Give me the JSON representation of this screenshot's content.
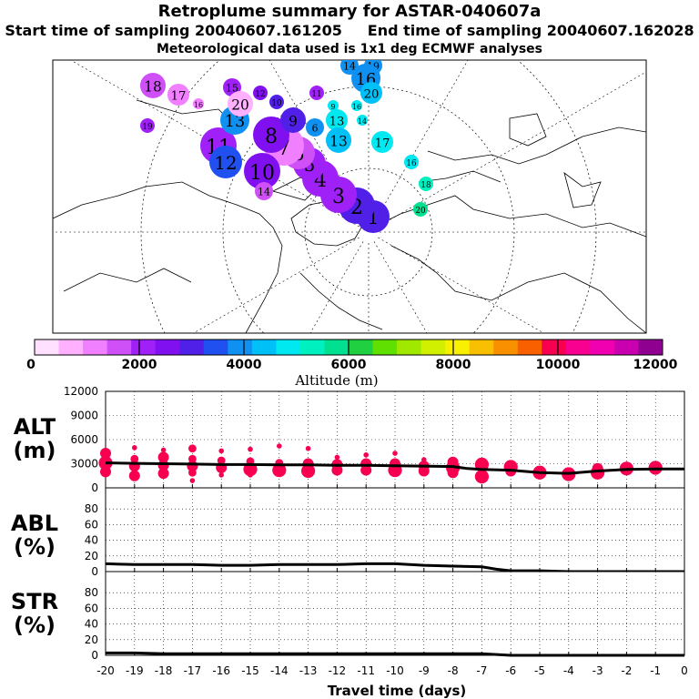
{
  "header": {
    "title": "Retroplume summary for ASTAR-040607a",
    "sampling_line": "Start time of sampling 20040607.161205     End time of sampling 20040607.162028",
    "met_line": "Meteorological data used is 1x1 deg ECMWF analyses"
  },
  "colorbar": {
    "label": "Altitude (m)",
    "ticks": [
      "0",
      "2000",
      "4000",
      "6000",
      "8000",
      "10000",
      "12000"
    ],
    "colors": [
      "#ffe0ff",
      "#ffb0ff",
      "#f080ff",
      "#d050f8",
      "#a020f8",
      "#8010f0",
      "#5020e8",
      "#2050f0",
      "#1090f0",
      "#00c0f8",
      "#00e8f0",
      "#00f0c0",
      "#00e090",
      "#20d040",
      "#60e000",
      "#a0e800",
      "#d0f000",
      "#f8f000",
      "#f8c000",
      "#f89000",
      "#f86000",
      "#f80050",
      "#f80090",
      "#f000b0",
      "#c800b0",
      "#900090"
    ]
  },
  "map": {
    "clusters": [
      {
        "label": "1",
        "lon_idx": 1,
        "color": "#5020e8"
      },
      {
        "label": "2",
        "lon_idx": 2,
        "color": "#5020e8"
      },
      {
        "label": "3",
        "lon_idx": 3,
        "color": "#a020f8"
      },
      {
        "label": "4",
        "lon_idx": 4,
        "color": "#a020f8"
      },
      {
        "label": "5",
        "lon_idx": 5,
        "color": "#a020f8"
      },
      {
        "label": "6",
        "lon_idx": 6,
        "color": "#d050f8"
      },
      {
        "label": "7",
        "lon_idx": 7,
        "color": "#f080ff"
      },
      {
        "label": "8",
        "lon_idx": 8,
        "color": "#8010f0"
      },
      {
        "label": "9",
        "lon_idx": 9,
        "color": "#5020e8"
      },
      {
        "label": "10",
        "lon_idx": 10,
        "color": "#8010f0"
      },
      {
        "label": "11",
        "lon_idx": 11,
        "color": "#a020f8"
      },
      {
        "label": "12",
        "lon_idx": 12,
        "color": "#2050f0"
      },
      {
        "label": "13",
        "lon_idx": 13,
        "color": "#1090f0"
      },
      {
        "label": "14",
        "lon_idx": 14,
        "color": "#d050f8"
      },
      {
        "label": "15",
        "lon_idx": 15,
        "color": "#a020f8"
      },
      {
        "label": "16",
        "lon_idx": 16,
        "color": "#f080ff"
      },
      {
        "label": "17",
        "lon_idx": 17,
        "color": "#f080ff"
      },
      {
        "label": "18",
        "lon_idx": 18,
        "color": "#d050f8"
      },
      {
        "label": "19",
        "lon_idx": 19,
        "color": "#a020f8"
      },
      {
        "label": "20",
        "lon_idx": 20,
        "color": "#ffb0ff"
      },
      {
        "label": "12",
        "lon_idx": 21,
        "color": "#8010f0"
      },
      {
        "label": "10",
        "lon_idx": 22,
        "color": "#5020e8"
      },
      {
        "label": "11",
        "lon_idx": 23,
        "color": "#a020f8"
      },
      {
        "label": "14",
        "lon_idx": 24,
        "color": "#1090f0"
      },
      {
        "label": "19",
        "lon_idx": 25,
        "color": "#1090f0"
      },
      {
        "label": "16",
        "lon_idx": 26,
        "color": "#1090f0"
      },
      {
        "label": "20",
        "lon_idx": 27,
        "color": "#00c0f8"
      },
      {
        "label": "13",
        "lon_idx": 28,
        "color": "#00e8f0"
      },
      {
        "label": "17",
        "lon_idx": 29,
        "color": "#00e8f0"
      },
      {
        "label": "16",
        "lon_idx": 30,
        "color": "#00e8f0"
      },
      {
        "label": "18",
        "lon_idx": 31,
        "color": "#00f0c0"
      },
      {
        "label": "20",
        "lon_idx": 32,
        "color": "#00e090"
      },
      {
        "label": "14",
        "lon_idx": 33,
        "color": "#00e8f0"
      },
      {
        "label": "9",
        "lon_idx": 34,
        "color": "#00e8f0"
      },
      {
        "label": "16",
        "lon_idx": 35,
        "color": "#00e8f0"
      },
      {
        "label": "6",
        "lon_idx": 36,
        "color": "#1090f0"
      },
      {
        "label": "13",
        "lon_idx": 37,
        "color": "#00c0f8"
      }
    ]
  },
  "panels": {
    "alt": {
      "label_line1": "ALT",
      "label_line2": "(m)"
    },
    "abl": {
      "label_line1": "ABL",
      "label_line2": "(%)"
    },
    "str": {
      "label_line1": "STR",
      "label_line2": "(%)"
    }
  },
  "chart_data": [
    {
      "type": "scatter",
      "title": "ALT",
      "ylabel": "ALT (m)",
      "xlabel": "Travel time (days)",
      "xlim": [
        -20,
        0
      ],
      "ylim": [
        0,
        12000
      ],
      "yticks": [
        "0",
        "3000",
        "6000",
        "9000",
        "12000"
      ],
      "line_color": "#000000",
      "marker_color": "#f80050",
      "mean_line": {
        "x": [
          -20,
          -19,
          -18,
          -17,
          -16,
          -15,
          -14,
          -13,
          -12,
          -11,
          -10,
          -9,
          -8,
          -7.5,
          -7,
          -6,
          -5,
          -4,
          -3,
          -2,
          -1,
          0
        ],
        "y": [
          3100,
          3050,
          3000,
          2950,
          2900,
          2900,
          2850,
          2850,
          2800,
          2800,
          2750,
          2700,
          2650,
          2400,
          2300,
          2200,
          1900,
          1800,
          2100,
          2300,
          2350,
          2350
        ]
      },
      "points": [
        {
          "x": -20,
          "y": 4300,
          "s": 3
        },
        {
          "x": -20,
          "y": 3100,
          "s": 4
        },
        {
          "x": -20,
          "y": 2000,
          "s": 3
        },
        {
          "x": -19,
          "y": 5000,
          "s": 1
        },
        {
          "x": -19,
          "y": 3600,
          "s": 2
        },
        {
          "x": -19,
          "y": 2700,
          "s": 3
        },
        {
          "x": -19,
          "y": 1500,
          "s": 3
        },
        {
          "x": -18,
          "y": 4700,
          "s": 1
        },
        {
          "x": -18,
          "y": 3800,
          "s": 3
        },
        {
          "x": -18,
          "y": 2800,
          "s": 3
        },
        {
          "x": -18,
          "y": 1800,
          "s": 3
        },
        {
          "x": -17,
          "y": 4900,
          "s": 2
        },
        {
          "x": -17,
          "y": 3600,
          "s": 2
        },
        {
          "x": -17,
          "y": 2700,
          "s": 3
        },
        {
          "x": -17,
          "y": 1900,
          "s": 2
        },
        {
          "x": -17,
          "y": 900,
          "s": 1
        },
        {
          "x": -16,
          "y": 4600,
          "s": 1
        },
        {
          "x": -16,
          "y": 3400,
          "s": 2
        },
        {
          "x": -16,
          "y": 2500,
          "s": 3
        },
        {
          "x": -16,
          "y": 1600,
          "s": 1
        },
        {
          "x": -15,
          "y": 4800,
          "s": 1
        },
        {
          "x": -15,
          "y": 3300,
          "s": 2
        },
        {
          "x": -15,
          "y": 2300,
          "s": 4
        },
        {
          "x": -15,
          "y": 1600,
          "s": 1
        },
        {
          "x": -14,
          "y": 5200,
          "s": 1
        },
        {
          "x": -14,
          "y": 3100,
          "s": 2
        },
        {
          "x": -14,
          "y": 2200,
          "s": 4
        },
        {
          "x": -13,
          "y": 4900,
          "s": 1
        },
        {
          "x": -13,
          "y": 3000,
          "s": 3
        },
        {
          "x": -13,
          "y": 2100,
          "s": 4
        },
        {
          "x": -12,
          "y": 3800,
          "s": 1
        },
        {
          "x": -12,
          "y": 2900,
          "s": 3
        },
        {
          "x": -12,
          "y": 2200,
          "s": 3
        },
        {
          "x": -11,
          "y": 4100,
          "s": 1
        },
        {
          "x": -11,
          "y": 3000,
          "s": 3
        },
        {
          "x": -11,
          "y": 2200,
          "s": 3
        },
        {
          "x": -10,
          "y": 4300,
          "s": 1
        },
        {
          "x": -10,
          "y": 3000,
          "s": 3
        },
        {
          "x": -10,
          "y": 2200,
          "s": 4
        },
        {
          "x": -9,
          "y": 3500,
          "s": 1
        },
        {
          "x": -9,
          "y": 2700,
          "s": 3
        },
        {
          "x": -9,
          "y": 2100,
          "s": 3
        },
        {
          "x": -8,
          "y": 3200,
          "s": 3
        },
        {
          "x": -8,
          "y": 2500,
          "s": 4
        },
        {
          "x": -8,
          "y": 1900,
          "s": 3
        },
        {
          "x": -7,
          "y": 2900,
          "s": 4
        },
        {
          "x": -7,
          "y": 1400,
          "s": 4
        },
        {
          "x": -6,
          "y": 2600,
          "s": 4
        },
        {
          "x": -6,
          "y": 2100,
          "s": 3
        },
        {
          "x": -5,
          "y": 1900,
          "s": 4
        },
        {
          "x": -4,
          "y": 1700,
          "s": 4
        },
        {
          "x": -3,
          "y": 2400,
          "s": 3
        },
        {
          "x": -3,
          "y": 1900,
          "s": 4
        },
        {
          "x": -2,
          "y": 2400,
          "s": 4
        },
        {
          "x": -1,
          "y": 2500,
          "s": 4
        },
        {
          "x": -1,
          "y": 2300,
          "s": 3
        }
      ]
    },
    {
      "type": "line",
      "title": "ABL",
      "ylabel": "ABL (%)",
      "xlim": [
        -20,
        0
      ],
      "ylim": [
        0,
        100
      ],
      "yticks": [
        "0",
        "20",
        "40",
        "60",
        "80"
      ],
      "x": [
        -20,
        -19,
        -18,
        -17,
        -16,
        -15,
        -14,
        -13,
        -12,
        -11,
        -10,
        -9,
        -8,
        -7,
        -6.5,
        -6,
        -5,
        -4,
        -3,
        -2,
        -1,
        0
      ],
      "y": [
        10,
        9,
        9,
        9,
        8,
        8,
        9,
        9,
        9,
        10,
        10,
        8,
        7,
        6,
        3,
        1,
        1,
        0,
        0,
        0,
        0,
        0
      ]
    },
    {
      "type": "line",
      "title": "STR",
      "ylabel": "STR (%)",
      "xlabel": "Travel time (days)",
      "xlim": [
        -20,
        0
      ],
      "ylim": [
        0,
        100
      ],
      "yticks": [
        "0",
        "20",
        "40",
        "60",
        "80"
      ],
      "xticks": [
        "-20",
        "-19",
        "-18",
        "-17",
        "-16",
        "-15",
        "-14",
        "-13",
        "-12",
        "-11",
        "-10",
        "-9",
        "-8",
        "-7",
        "-6",
        "-5",
        "-4",
        "-3",
        "-2",
        "-1",
        "0"
      ],
      "x": [
        -20,
        -19,
        -18,
        -17,
        -16,
        -15,
        -14,
        -13,
        -12,
        -11,
        -10,
        -9,
        -8,
        -7,
        -6.5,
        -6,
        -5,
        -4,
        -3,
        -2,
        -1,
        0
      ],
      "y": [
        3,
        3,
        2,
        2,
        2,
        2,
        2,
        2,
        2,
        2,
        2,
        2,
        2,
        2,
        1,
        0,
        0,
        0,
        0,
        0,
        0,
        0
      ]
    }
  ]
}
